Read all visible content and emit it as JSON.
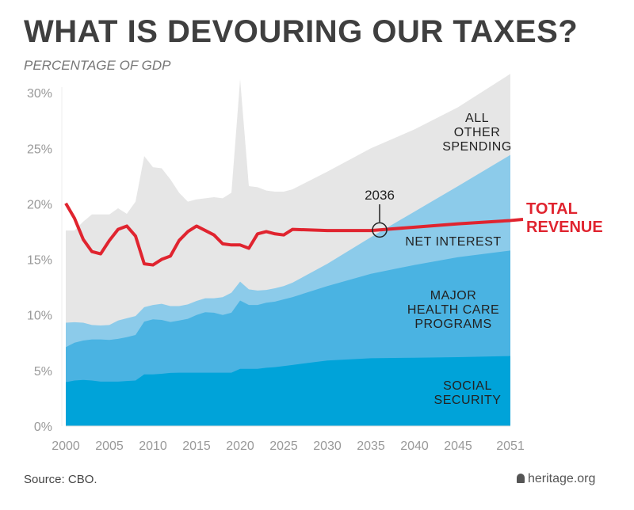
{
  "header": {
    "title": "WHAT IS DEVOURING OUR TAXES?",
    "subtitle": "PERCENTAGE OF GDP"
  },
  "footer": {
    "source": "Source: CBO.",
    "brand": "heritage.org",
    "brand_icon": "liberty-bell-icon"
  },
  "chart_data": {
    "type": "area",
    "title": "WHAT IS DEVOURING OUR TAXES?",
    "ylabel": "PERCENTAGE OF GDP",
    "ylim": [
      0,
      30
    ],
    "xlim": [
      2000,
      2051
    ],
    "yticks": [
      "0%",
      "5%",
      "10%",
      "15%",
      "20%",
      "25%",
      "30%"
    ],
    "ytick_values": [
      0,
      5,
      10,
      15,
      20,
      25,
      30
    ],
    "xticks": [
      "2000",
      "2005",
      "2010",
      "2015",
      "2020",
      "2025",
      "2030",
      "2035",
      "2040",
      "2045",
      "2051"
    ],
    "xtick_values": [
      2000,
      2005,
      2010,
      2015,
      2020,
      2025,
      2030,
      2035,
      2040,
      2045,
      2051
    ],
    "grid": false,
    "stacked": true,
    "x": [
      2000,
      2001,
      2002,
      2003,
      2004,
      2005,
      2006,
      2007,
      2008,
      2009,
      2010,
      2011,
      2012,
      2013,
      2014,
      2015,
      2016,
      2017,
      2018,
      2019,
      2020,
      2021,
      2022,
      2023,
      2024,
      2025,
      2026,
      2030,
      2035,
      2040,
      2045,
      2051
    ],
    "series": [
      {
        "name": "SOCIAL SECURITY",
        "color": "#00a3d9",
        "label_lines": [
          "SOCIAL",
          "SECURITY"
        ],
        "cumulative_top": [
          3.95,
          4.1,
          4.15,
          4.1,
          4.0,
          4.0,
          4.0,
          4.05,
          4.1,
          4.65,
          4.65,
          4.7,
          4.78,
          4.8,
          4.8,
          4.8,
          4.8,
          4.8,
          4.8,
          4.8,
          5.15,
          5.15,
          5.15,
          5.25,
          5.3,
          5.4,
          5.5,
          5.9,
          6.1,
          6.15,
          6.2,
          6.3
        ]
      },
      {
        "name": "MAJOR HEALTH CARE PROGRAMS",
        "color": "#4ab3e2",
        "label_lines": [
          "MAJOR",
          "HEALTH CARE",
          "PROGRAMS"
        ],
        "cumulative_top": [
          7.1,
          7.5,
          7.7,
          7.8,
          7.8,
          7.75,
          7.85,
          8.0,
          8.2,
          9.4,
          9.6,
          9.55,
          9.36,
          9.5,
          9.65,
          10.0,
          10.25,
          10.2,
          10.0,
          10.2,
          11.3,
          10.9,
          10.9,
          11.1,
          11.2,
          11.4,
          11.6,
          12.6,
          13.7,
          14.5,
          15.2,
          15.8
        ]
      },
      {
        "name": "NET INTEREST",
        "color": "#8ccbea",
        "label_lines": [
          "NET INTEREST"
        ],
        "cumulative_top": [
          9.3,
          9.35,
          9.3,
          9.1,
          9.05,
          9.1,
          9.5,
          9.7,
          9.9,
          10.7,
          10.9,
          11.0,
          10.8,
          10.8,
          10.95,
          11.26,
          11.5,
          11.5,
          11.6,
          12.0,
          13.0,
          12.3,
          12.2,
          12.25,
          12.4,
          12.6,
          12.9,
          14.6,
          17.0,
          19.3,
          21.6,
          24.4
        ]
      },
      {
        "name": "ALL OTHER SPENDING",
        "color": "#e6e6e6",
        "label_lines": [
          "ALL",
          "OTHER",
          "SPENDING"
        ],
        "cumulative_top": [
          17.6,
          17.6,
          18.4,
          19.05,
          19.05,
          19.05,
          19.6,
          19.1,
          20.2,
          24.3,
          23.3,
          23.2,
          22.2,
          21.0,
          20.2,
          20.4,
          20.5,
          20.6,
          20.5,
          21.0,
          31.2,
          21.6,
          21.5,
          21.2,
          21.1,
          21.1,
          21.3,
          22.9,
          25.0,
          26.7,
          28.7,
          31.7
        ]
      }
    ],
    "line": {
      "name": "TOTAL REVENUE",
      "label_lines": [
        "TOTAL",
        "REVENUE"
      ],
      "color": "#e0242f",
      "values": [
        20.05,
        18.7,
        16.8,
        15.7,
        15.5,
        16.7,
        17.7,
        18.0,
        17.1,
        14.6,
        14.5,
        15.0,
        15.3,
        16.7,
        17.5,
        18.0,
        17.6,
        17.2,
        16.4,
        16.3,
        16.3,
        16.0,
        17.3,
        17.5,
        17.3,
        17.2,
        17.7,
        17.6,
        17.6,
        17.9,
        18.2,
        18.5
      ]
    },
    "annotation": {
      "label": "2036",
      "x": 2036,
      "y": 17.65
    }
  }
}
